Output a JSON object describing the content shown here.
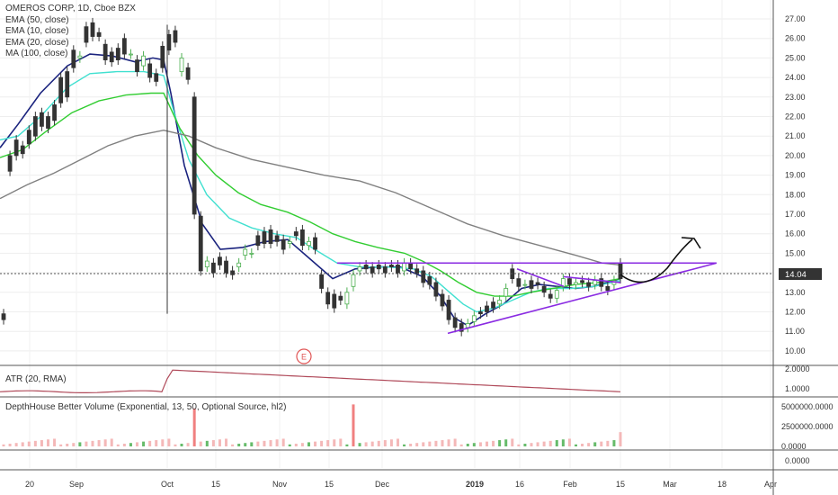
{
  "legend": {
    "title": "OMEROS CORP, 1D, Cboe BZX",
    "indicators": [
      "EMA (50, close)",
      "EMA (10, close)",
      "EMA (20, close)",
      "MA (100, close)"
    ]
  },
  "atr_label": "ATR (20, RMA)",
  "volume_label": "DepthHouse Better Volume (Exponential, 13, 50, Optional Source, hl2)",
  "price_badge": "14.04",
  "earnings_marker": "E",
  "colors": {
    "bull": "#4caf50",
    "bear": "#333333",
    "ema10": "#1a237e",
    "ema20": "#40e0d0",
    "ema50": "#32cd32",
    "ma100": "#808080",
    "trendline": "#8a2be2",
    "atr": "#b04a5a",
    "volume_spike": "#f08080",
    "volume_up": "#66bb6a"
  },
  "price_axis": [
    "27.00",
    "26.00",
    "25.00",
    "24.00",
    "23.00",
    "22.00",
    "21.00",
    "20.00",
    "19.00",
    "18.00",
    "17.00",
    "16.00",
    "15.00",
    "14.00",
    "13.00",
    "12.00",
    "11.00",
    "10.00"
  ],
  "atr_axis": [
    "2.0000",
    "1.0000"
  ],
  "volume_axis": [
    "5000000.0000",
    "2500000.0000",
    "0.0000"
  ],
  "extra_axis": [
    "0.0000"
  ],
  "time_axis": [
    "20",
    "Sep",
    "Oct",
    "15",
    "Nov",
    "15",
    "Dec",
    "2019",
    "16",
    "Feb",
    "15",
    "Mar",
    "18",
    "Apr"
  ],
  "chart_data": {
    "type": "candlestick",
    "title": "OMEROS CORP, 1D, Cboe BZX",
    "last_price": 14.04,
    "ylim": [
      9.5,
      27.5
    ],
    "series": [
      {
        "name": "EMA (10, close)",
        "points": [
          [
            0,
            20.4
          ],
          [
            20,
            21.6
          ],
          [
            45,
            23.2
          ],
          [
            75,
            24.6
          ],
          [
            100,
            25.2
          ],
          [
            125,
            25.1
          ],
          [
            150,
            24.8
          ],
          [
            170,
            25.0
          ],
          [
            182,
            24.9
          ],
          [
            190,
            23.2
          ],
          [
            205,
            19.5
          ],
          [
            225,
            16.5
          ],
          [
            245,
            15.2
          ],
          [
            270,
            15.3
          ],
          [
            295,
            15.6
          ],
          [
            320,
            15.7
          ],
          [
            345,
            14.7
          ],
          [
            370,
            13.7
          ],
          [
            395,
            14.2
          ],
          [
            420,
            14.3
          ],
          [
            445,
            14.3
          ],
          [
            470,
            13.8
          ],
          [
            490,
            12.8
          ],
          [
            505,
            11.7
          ],
          [
            520,
            11.3
          ],
          [
            540,
            11.9
          ],
          [
            560,
            12.4
          ],
          [
            580,
            13.2
          ],
          [
            600,
            13.4
          ],
          [
            620,
            13.3
          ],
          [
            640,
            13.2
          ],
          [
            660,
            13.3
          ],
          [
            690,
            13.7
          ]
        ]
      },
      {
        "name": "EMA (20, close)",
        "points": [
          [
            0,
            20.8
          ],
          [
            20,
            21.0
          ],
          [
            45,
            22.0
          ],
          [
            75,
            23.5
          ],
          [
            100,
            24.2
          ],
          [
            130,
            24.3
          ],
          [
            160,
            24.3
          ],
          [
            182,
            24.1
          ],
          [
            195,
            22.0
          ],
          [
            210,
            19.8
          ],
          [
            230,
            18.0
          ],
          [
            255,
            16.8
          ],
          [
            280,
            16.3
          ],
          [
            305,
            16.0
          ],
          [
            330,
            15.8
          ],
          [
            350,
            15.2
          ],
          [
            375,
            14.5
          ],
          [
            400,
            14.3
          ],
          [
            430,
            14.3
          ],
          [
            460,
            14.2
          ],
          [
            480,
            13.8
          ],
          [
            500,
            13.0
          ],
          [
            515,
            12.4
          ],
          [
            530,
            12.0
          ],
          [
            550,
            12.2
          ],
          [
            570,
            12.6
          ],
          [
            590,
            13.0
          ],
          [
            610,
            13.2
          ],
          [
            635,
            13.2
          ],
          [
            660,
            13.3
          ],
          [
            690,
            13.6
          ]
        ]
      },
      {
        "name": "EMA (50, close)",
        "points": [
          [
            0,
            19.9
          ],
          [
            25,
            20.3
          ],
          [
            50,
            21.2
          ],
          [
            80,
            22.2
          ],
          [
            110,
            22.8
          ],
          [
            140,
            23.1
          ],
          [
            168,
            23.2
          ],
          [
            182,
            23.2
          ],
          [
            200,
            21.4
          ],
          [
            220,
            20.0
          ],
          [
            240,
            19.0
          ],
          [
            265,
            18.1
          ],
          [
            290,
            17.5
          ],
          [
            320,
            17.1
          ],
          [
            345,
            16.6
          ],
          [
            370,
            16.0
          ],
          [
            395,
            15.6
          ],
          [
            420,
            15.3
          ],
          [
            450,
            15.0
          ],
          [
            470,
            14.6
          ],
          [
            490,
            14.1
          ],
          [
            510,
            13.5
          ],
          [
            530,
            13.0
          ],
          [
            550,
            12.8
          ],
          [
            570,
            12.8
          ],
          [
            590,
            13.0
          ],
          [
            615,
            13.2
          ],
          [
            640,
            13.4
          ],
          [
            665,
            13.5
          ],
          [
            690,
            13.7
          ]
        ]
      },
      {
        "name": "MA (100, close)",
        "points": [
          [
            0,
            17.8
          ],
          [
            30,
            18.5
          ],
          [
            60,
            19.1
          ],
          [
            90,
            19.8
          ],
          [
            120,
            20.5
          ],
          [
            150,
            21.0
          ],
          [
            182,
            21.3
          ],
          [
            210,
            21.0
          ],
          [
            240,
            20.4
          ],
          [
            280,
            19.8
          ],
          [
            320,
            19.4
          ],
          [
            360,
            19.0
          ],
          [
            400,
            18.7
          ],
          [
            440,
            18.1
          ],
          [
            480,
            17.3
          ],
          [
            520,
            16.5
          ],
          [
            560,
            15.9
          ],
          [
            600,
            15.4
          ],
          [
            640,
            14.9
          ],
          [
            670,
            14.5
          ],
          [
            690,
            14.4
          ]
        ]
      }
    ],
    "trendlines": [
      {
        "name": "resistance",
        "from": [
          375,
          14.5
        ],
        "to": [
          797,
          14.5
        ]
      },
      {
        "name": "support",
        "from": [
          498,
          10.9
        ],
        "to": [
          797,
          14.5
        ]
      },
      {
        "name": "pennant-upper",
        "from": [
          575,
          14.2
        ],
        "to": [
          627,
          13.3
        ]
      },
      {
        "name": "flag-upper",
        "from": [
          627,
          13.8
        ],
        "to": [
          690,
          13.5
        ]
      }
    ],
    "candles": [
      [
        11.9,
        11.6
      ],
      [
        20.0,
        19.2
      ],
      [
        20.8,
        20.0
      ],
      [
        20.5,
        20.1
      ],
      [
        21.3,
        20.6
      ],
      [
        22.0,
        21.0
      ],
      [
        22.2,
        21.5
      ],
      [
        22.0,
        21.4
      ],
      [
        22.6,
        21.8
      ],
      [
        24.0,
        22.7
      ],
      [
        24.3,
        23.0
      ],
      [
        25.4,
        24.5
      ],
      [
        25.0,
        25.1
      ],
      [
        26.6,
        25.8
      ],
      [
        26.8,
        26.1
      ],
      [
        26.3,
        26.1
      ],
      [
        25.7,
        24.9
      ],
      [
        25.3,
        24.8
      ],
      [
        25.5,
        24.9
      ],
      [
        26.0,
        25.2
      ],
      [
        25.2,
        25.2
      ],
      [
        24.9,
        24.3
      ],
      [
        24.6,
        25.1
      ],
      [
        24.7,
        24.0
      ],
      [
        24.2,
        23.8
      ],
      [
        25.6,
        24.5
      ],
      [
        26.2,
        25.4
      ],
      [
        26.4,
        25.8
      ],
      [
        24.3,
        25.0
      ],
      [
        24.5,
        23.9
      ],
      [
        23.0,
        17.0
      ],
      [
        16.9,
        14.1
      ],
      [
        14.3,
        14.6
      ],
      [
        14.5,
        14.0
      ],
      [
        14.8,
        14.4
      ],
      [
        14.6,
        14.0
      ],
      [
        14.1,
        13.9
      ],
      [
        14.3,
        14.5
      ],
      [
        14.9,
        15.2
      ],
      [
        15.0,
        15.0
      ],
      [
        15.9,
        15.4
      ],
      [
        16.1,
        15.5
      ],
      [
        16.2,
        15.5
      ],
      [
        15.9,
        15.6
      ],
      [
        15.7,
        15.2
      ],
      [
        15.5,
        15.6
      ],
      [
        16.1,
        15.9
      ],
      [
        16.2,
        15.4
      ],
      [
        15.4,
        15.6
      ],
      [
        15.8,
        15.2
      ],
      [
        13.9,
        13.2
      ],
      [
        13.0,
        12.4
      ],
      [
        12.9,
        12.2
      ],
      [
        12.8,
        12.6
      ],
      [
        12.4,
        13.0
      ],
      [
        13.3,
        13.9
      ],
      [
        14.1,
        14.3
      ],
      [
        14.4,
        14.2
      ],
      [
        14.3,
        14.0
      ],
      [
        14.4,
        14.2
      ],
      [
        14.3,
        14.0
      ],
      [
        14.4,
        14.3
      ],
      [
        14.4,
        14.0
      ],
      [
        14.1,
        14.5
      ],
      [
        14.5,
        14.2
      ],
      [
        14.2,
        14.0
      ],
      [
        14.1,
        13.5
      ],
      [
        13.8,
        13.4
      ],
      [
        13.5,
        12.8
      ],
      [
        12.9,
        12.3
      ],
      [
        12.6,
        11.6
      ],
      [
        11.7,
        11.2
      ],
      [
        11.4,
        11.0
      ],
      [
        11.2,
        11.4
      ],
      [
        11.5,
        11.8
      ],
      [
        12.0,
        11.9
      ],
      [
        12.3,
        12.0
      ],
      [
        12.5,
        12.2
      ],
      [
        12.4,
        12.6
      ],
      [
        12.8,
        13.2
      ],
      [
        14.2,
        13.7
      ],
      [
        13.7,
        13.3
      ],
      [
        13.4,
        13.4
      ],
      [
        13.6,
        13.2
      ],
      [
        13.5,
        13.4
      ],
      [
        13.3,
        13.0
      ],
      [
        12.9,
        12.7
      ],
      [
        12.7,
        13.1
      ],
      [
        13.3,
        13.7
      ],
      [
        13.7,
        13.4
      ],
      [
        13.4,
        13.5
      ],
      [
        13.6,
        13.5
      ],
      [
        13.5,
        13.3
      ],
      [
        13.4,
        13.6
      ],
      [
        13.7,
        13.3
      ],
      [
        13.3,
        13.1
      ],
      [
        13.4,
        13.6
      ],
      [
        14.5,
        13.7
      ]
    ],
    "atr": {
      "name": "ATR (20, RMA)",
      "ylim": [
        0.5,
        2.5
      ]
    },
    "volume": {
      "name": "DepthHouse Better Volume (Exponential, 13, 50, Optional Source, hl2)",
      "ylim": [
        0,
        6000000
      ]
    }
  }
}
